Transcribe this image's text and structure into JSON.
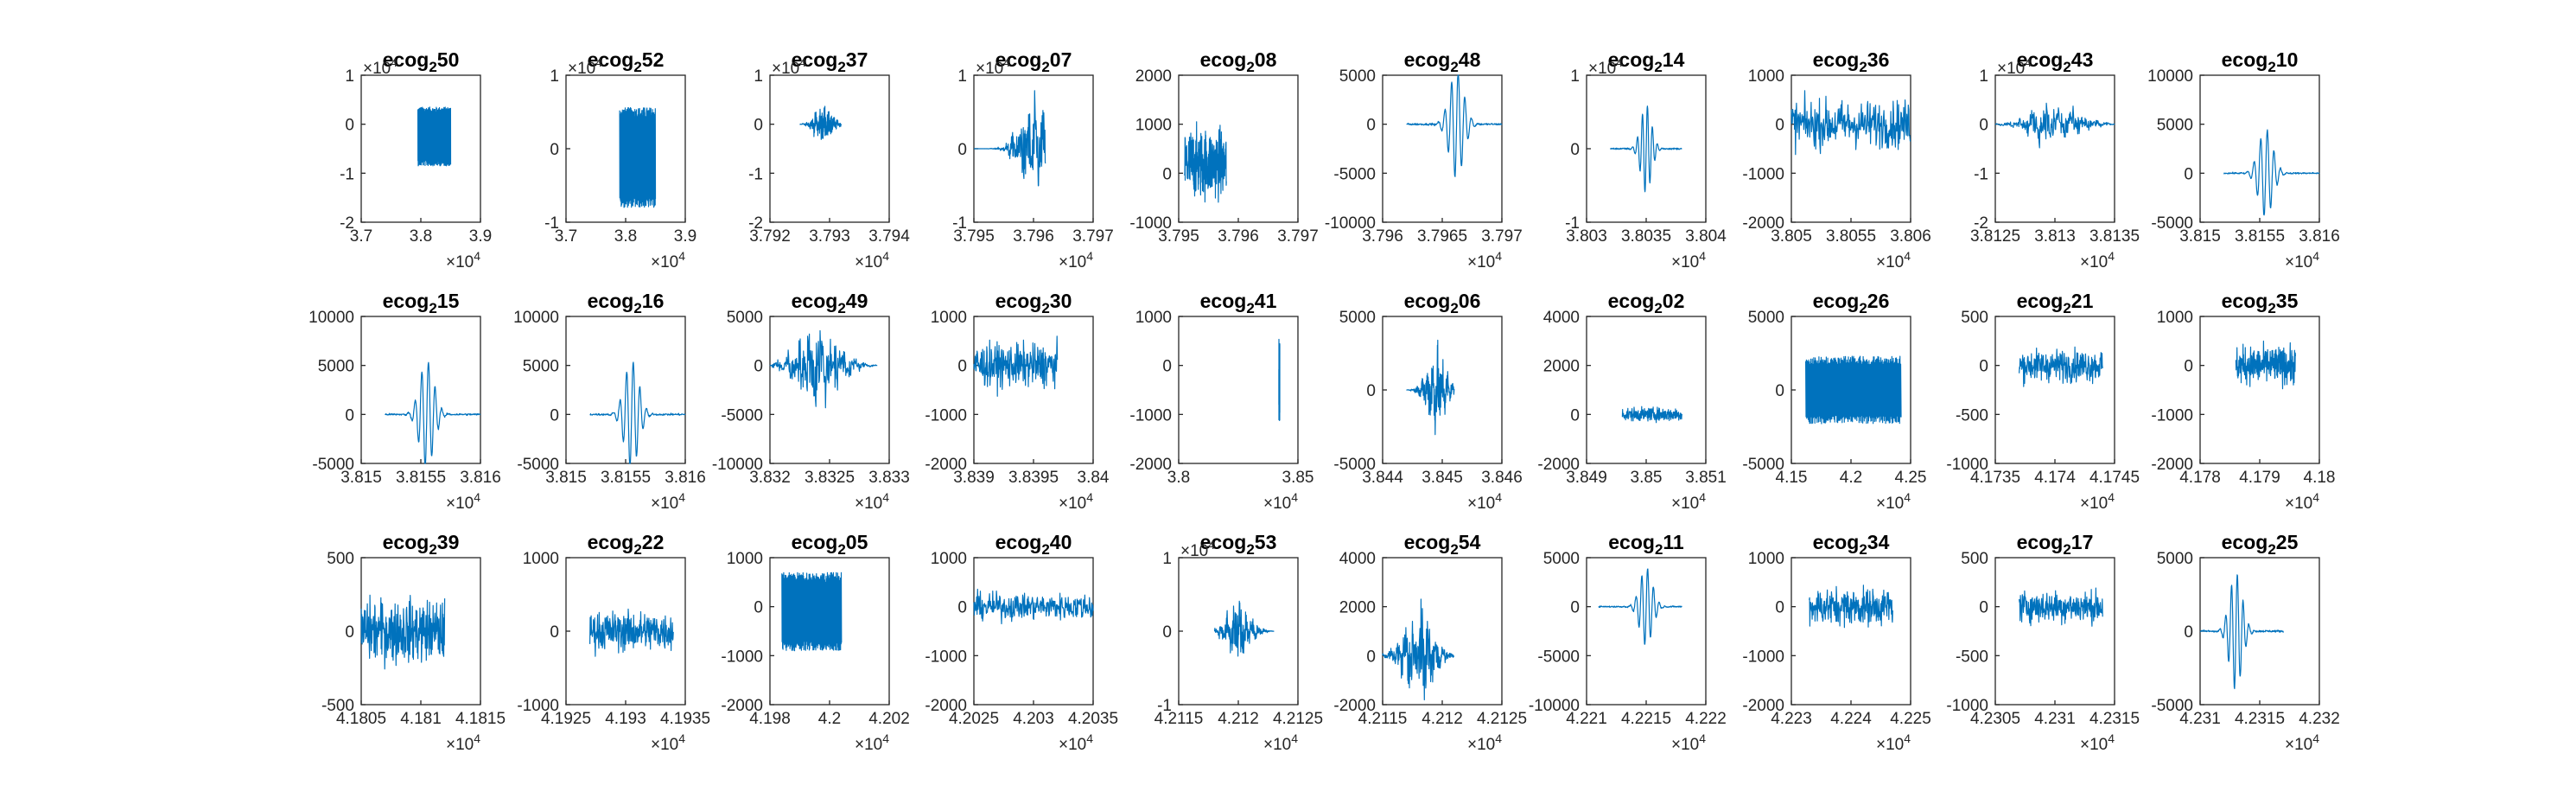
{
  "figure": {
    "background": "#ffffff",
    "line_color": "#0072BD",
    "axis_color": "#262626"
  },
  "chart_data": [
    {
      "type": "line",
      "title": "ecog",
      "title_sub": "2",
      "title_num": "50",
      "x_ticks": [
        "3.7",
        "3.8",
        "3.9"
      ],
      "xlim": [
        37000,
        39000
      ],
      "x_exponent": "4",
      "y_ticks": [
        "-2",
        "-1",
        "0",
        "1"
      ],
      "ylim": [
        -20000,
        10000
      ],
      "y_exponent": "4",
      "signal": {
        "start": 37950,
        "end": 38500,
        "center": 37950,
        "amp": 6000,
        "offset": -2500,
        "kind": "block"
      }
    },
    {
      "type": "line",
      "title": "ecog",
      "title_sub": "2",
      "title_num": "52",
      "x_ticks": [
        "3.7",
        "3.8",
        "3.9"
      ],
      "xlim": [
        37000,
        39000
      ],
      "x_exponent": "4",
      "y_ticks": [
        "-1",
        "0",
        "1"
      ],
      "ylim": [
        -10000,
        10000
      ],
      "y_exponent": "4",
      "signal": {
        "start": 37900,
        "end": 38500,
        "center": 37900,
        "amp": 6800,
        "offset": -1200,
        "kind": "block"
      }
    },
    {
      "type": "line",
      "title": "ecog",
      "title_sub": "2",
      "title_num": "37",
      "x_ticks": [
        "3.792",
        "3.793",
        "3.794"
      ],
      "xlim": [
        37920,
        37940
      ],
      "x_exponent": "4",
      "y_ticks": [
        "-2",
        "-1",
        "0",
        "1"
      ],
      "ylim": [
        -20000,
        10000
      ],
      "y_exponent": "4",
      "signal": {
        "start": 37925,
        "end": 37932,
        "center": 37929,
        "amp": 5000,
        "offset": 0,
        "kind": "burst"
      }
    },
    {
      "type": "line",
      "title": "ecog",
      "title_sub": "2",
      "title_num": "07",
      "x_ticks": [
        "3.795",
        "3.796",
        "3.797"
      ],
      "xlim": [
        37950,
        37970
      ],
      "x_exponent": "4",
      "y_ticks": [
        "-1",
        "0",
        "1"
      ],
      "ylim": [
        -10000,
        10000
      ],
      "y_exponent": "4",
      "signal": {
        "start": 37950,
        "end": 37962,
        "center": 37960,
        "amp": 8000,
        "offset": 0,
        "kind": "burst"
      }
    },
    {
      "type": "line",
      "title": "ecog",
      "title_sub": "2",
      "title_num": "08",
      "x_ticks": [
        "3.795",
        "3.796",
        "3.797"
      ],
      "xlim": [
        37950,
        37970
      ],
      "x_exponent": "",
      "y_ticks": [
        "-1000",
        "0",
        "1000",
        "2000"
      ],
      "ylim": [
        -1000,
        2000
      ],
      "signal": {
        "start": 37951,
        "end": 37958,
        "center": 37955,
        "amp": 1300,
        "offset": 200,
        "kind": "noise"
      }
    },
    {
      "type": "line",
      "title": "ecog",
      "title_sub": "2",
      "title_num": "48",
      "x_ticks": [
        "3.796",
        "3.7965",
        "3.797"
      ],
      "xlim": [
        37960,
        37970
      ],
      "x_exponent": "4",
      "y_ticks": [
        "-10000",
        "-5000",
        "0",
        "5000"
      ],
      "ylim": [
        -10000,
        5000
      ],
      "signal": {
        "start": 37962,
        "end": 37970,
        "center": 37966.2,
        "amp": 5500,
        "offset": 0,
        "kind": "wavelet"
      }
    },
    {
      "type": "line",
      "title": "ecog",
      "title_sub": "2",
      "title_num": "14",
      "x_ticks": [
        "3.803",
        "3.8035",
        "3.804"
      ],
      "xlim": [
        38030,
        38040
      ],
      "x_exponent": "4",
      "y_ticks": [
        "-1",
        "0",
        "1"
      ],
      "ylim": [
        -10000,
        10000
      ],
      "y_exponent": "4",
      "signal": {
        "start": 38032,
        "end": 38038,
        "center": 38035,
        "amp": 6000,
        "offset": 0,
        "kind": "wavelet"
      }
    },
    {
      "type": "line",
      "title": "ecog",
      "title_sub": "2",
      "title_num": "36",
      "x_ticks": [
        "3.805",
        "3.8055",
        "3.806"
      ],
      "xlim": [
        38050,
        38060
      ],
      "x_exponent": "4",
      "y_ticks": [
        "-2000",
        "-1000",
        "0",
        "1000"
      ],
      "ylim": [
        -2000,
        1000
      ],
      "signal": {
        "start": 38050,
        "end": 38060,
        "center": 38055,
        "amp": 900,
        "offset": 0,
        "kind": "noise"
      }
    },
    {
      "type": "line",
      "title": "ecog",
      "title_sub": "2",
      "title_num": "43",
      "x_ticks": [
        "3.8125",
        "3.813",
        "3.8135"
      ],
      "xlim": [
        38125,
        38135
      ],
      "x_exponent": "4",
      "y_ticks": [
        "-2",
        "-1",
        "0",
        "1"
      ],
      "ylim": [
        -20000,
        10000
      ],
      "y_exponent": "4",
      "signal": {
        "start": 38125,
        "end": 38135,
        "center": 38130,
        "amp": 6000,
        "offset": 0,
        "kind": "burst"
      }
    },
    {
      "type": "line",
      "title": "ecog",
      "title_sub": "2",
      "title_num": "10",
      "x_ticks": [
        "3.815",
        "3.8155",
        "3.816"
      ],
      "xlim": [
        38150,
        38160
      ],
      "x_exponent": "4",
      "y_ticks": [
        "-5000",
        "0",
        "5000",
        "10000"
      ],
      "ylim": [
        -5000,
        10000
      ],
      "signal": {
        "start": 38152,
        "end": 38160,
        "center": 38155.5,
        "amp": 4500,
        "offset": 0,
        "kind": "wavelet"
      }
    },
    {
      "type": "line",
      "title": "ecog",
      "title_sub": "2",
      "title_num": "15",
      "x_ticks": [
        "3.815",
        "3.8155",
        "3.816"
      ],
      "xlim": [
        38150,
        38160
      ],
      "x_exponent": "4",
      "y_ticks": [
        "-5000",
        "0",
        "5000",
        "10000"
      ],
      "ylim": [
        -5000,
        10000
      ],
      "signal": {
        "start": 38152,
        "end": 38160,
        "center": 38155.5,
        "amp": 5500,
        "offset": 0,
        "kind": "wavelet"
      }
    },
    {
      "type": "line",
      "title": "ecog",
      "title_sub": "2",
      "title_num": "16",
      "x_ticks": [
        "3.815",
        "3.8155",
        "3.816"
      ],
      "xlim": [
        38150,
        38160
      ],
      "x_exponent": "4",
      "y_ticks": [
        "-5000",
        "0",
        "5000",
        "10000"
      ],
      "ylim": [
        -5000,
        10000
      ],
      "signal": {
        "start": 38152,
        "end": 38160,
        "center": 38155.5,
        "amp": 5500,
        "offset": 0,
        "kind": "wavelet"
      }
    },
    {
      "type": "line",
      "title": "ecog",
      "title_sub": "2",
      "title_num": "49",
      "x_ticks": [
        "3.832",
        "3.8325",
        "3.833"
      ],
      "xlim": [
        38320,
        38330
      ],
      "x_exponent": "4",
      "y_ticks": [
        "-10000",
        "-5000",
        "0",
        "5000"
      ],
      "ylim": [
        -10000,
        5000
      ],
      "signal": {
        "start": 38320,
        "end": 38329,
        "center": 38324,
        "amp": 5500,
        "offset": 0,
        "kind": "burst"
      }
    },
    {
      "type": "line",
      "title": "ecog",
      "title_sub": "2",
      "title_num": "30",
      "x_ticks": [
        "3.839",
        "3.8395",
        "3.84"
      ],
      "xlim": [
        38390,
        38400
      ],
      "x_exponent": "4",
      "y_ticks": [
        "-2000",
        "-1000",
        "0",
        "1000"
      ],
      "ylim": [
        -2000,
        1000
      ],
      "signal": {
        "start": 38390,
        "end": 38397,
        "center": 38393,
        "amp": 800,
        "offset": 0,
        "kind": "noise"
      }
    },
    {
      "type": "line",
      "title": "ecog",
      "title_sub": "2",
      "title_num": "41",
      "x_ticks": [
        "3.8",
        "3.85"
      ],
      "xlim": [
        38000,
        38500
      ],
      "x_exponent": "4",
      "y_ticks": [
        "-2000",
        "-1000",
        "0",
        "1000"
      ],
      "ylim": [
        -2000,
        1000
      ],
      "signal": {
        "start": 38420,
        "end": 38424,
        "center": 38422,
        "amp": 900,
        "offset": -400,
        "kind": "spike"
      }
    },
    {
      "type": "line",
      "title": "ecog",
      "title_sub": "2",
      "title_num": "06",
      "x_ticks": [
        "3.844",
        "3.845",
        "3.846"
      ],
      "xlim": [
        38440,
        38460
      ],
      "x_exponent": "4",
      "y_ticks": [
        "-5000",
        "0",
        "5000"
      ],
      "ylim": [
        -5000,
        5000
      ],
      "signal": {
        "start": 38444,
        "end": 38452,
        "center": 38449,
        "amp": 3500,
        "offset": 0,
        "kind": "burst"
      }
    },
    {
      "type": "line",
      "title": "ecog",
      "title_sub": "2",
      "title_num": "02",
      "x_ticks": [
        "3.849",
        "3.85",
        "3.851"
      ],
      "xlim": [
        38490,
        38510
      ],
      "x_exponent": "4",
      "y_ticks": [
        "-2000",
        "0",
        "2000",
        "4000"
      ],
      "ylim": [
        -2000,
        4000
      ],
      "signal": {
        "start": 38496,
        "end": 38506,
        "center": 38500,
        "amp": 500,
        "offset": 0,
        "kind": "noise"
      }
    },
    {
      "type": "line",
      "title": "ecog",
      "title_sub": "2",
      "title_num": "26",
      "x_ticks": [
        "4.15",
        "4.2",
        "4.25"
      ],
      "xlim": [
        41500,
        42500
      ],
      "x_exponent": "4",
      "y_ticks": [
        "-5000",
        "0",
        "5000"
      ],
      "ylim": [
        -5000,
        5000
      ],
      "signal": {
        "start": 41620,
        "end": 42420,
        "center": 41620,
        "amp": 2300,
        "offset": 0,
        "kind": "block"
      }
    },
    {
      "type": "line",
      "title": "ecog",
      "title_sub": "2",
      "title_num": "21",
      "x_ticks": [
        "4.1735",
        "4.174",
        "4.1745"
      ],
      "xlim": [
        41735,
        41745
      ],
      "x_exponent": "4",
      "y_ticks": [
        "-1000",
        "-500",
        "0",
        "500"
      ],
      "ylim": [
        -1000,
        500
      ],
      "signal": {
        "start": 41737,
        "end": 41744,
        "center": 41740,
        "amp": 300,
        "offset": 0,
        "kind": "noise"
      }
    },
    {
      "type": "line",
      "title": "ecog",
      "title_sub": "2",
      "title_num": "35",
      "x_ticks": [
        "4.178",
        "4.179",
        "4.18"
      ],
      "xlim": [
        41780,
        41800
      ],
      "x_exponent": "4",
      "y_ticks": [
        "-2000",
        "-1000",
        "0",
        "1000"
      ],
      "ylim": [
        -2000,
        1000
      ],
      "signal": {
        "start": 41786,
        "end": 41796,
        "center": 41790,
        "amp": 700,
        "offset": 0,
        "kind": "noise"
      }
    },
    {
      "type": "line",
      "title": "ecog",
      "title_sub": "2",
      "title_num": "39",
      "x_ticks": [
        "4.1805",
        "4.181",
        "4.1815"
      ],
      "xlim": [
        41805,
        41815
      ],
      "x_exponent": "4",
      "y_ticks": [
        "-500",
        "0",
        "500"
      ],
      "ylim": [
        -500,
        500
      ],
      "signal": {
        "start": 41805,
        "end": 41812,
        "center": 41808,
        "amp": 400,
        "offset": 0,
        "kind": "noise"
      }
    },
    {
      "type": "line",
      "title": "ecog",
      "title_sub": "2",
      "title_num": "22",
      "x_ticks": [
        "4.1925",
        "4.193",
        "4.1935"
      ],
      "xlim": [
        41925,
        41935
      ],
      "x_exponent": "4",
      "y_ticks": [
        "-1000",
        "0",
        "1000"
      ],
      "ylim": [
        -1000,
        1000
      ],
      "signal": {
        "start": 41927,
        "end": 41934,
        "center": 41930,
        "amp": 500,
        "offset": 0,
        "kind": "noise"
      }
    },
    {
      "type": "line",
      "title": "ecog",
      "title_sub": "2",
      "title_num": "05",
      "x_ticks": [
        "4.198",
        "4.2",
        "4.202"
      ],
      "xlim": [
        41980,
        42020
      ],
      "x_exponent": "4",
      "y_ticks": [
        "-2000",
        "-1000",
        "0",
        "1000"
      ],
      "ylim": [
        -2000,
        1000
      ],
      "signal": {
        "start": 41984,
        "end": 42004,
        "center": 41984,
        "amp": 800,
        "offset": -100,
        "kind": "block"
      }
    },
    {
      "type": "line",
      "title": "ecog",
      "title_sub": "2",
      "title_num": "40",
      "x_ticks": [
        "4.2025",
        "4.203",
        "4.2035"
      ],
      "xlim": [
        42025,
        42035
      ],
      "x_exponent": "4",
      "y_ticks": [
        "-2000",
        "-1000",
        "0",
        "1000"
      ],
      "ylim": [
        -2000,
        1000
      ],
      "signal": {
        "start": 42025,
        "end": 42035,
        "center": 42030,
        "amp": 500,
        "offset": 0,
        "kind": "noise"
      }
    },
    {
      "type": "line",
      "title": "ecog",
      "title_sub": "2",
      "title_num": "53",
      "x_ticks": [
        "4.2115",
        "4.212",
        "4.2125"
      ],
      "xlim": [
        42115,
        42125
      ],
      "x_exponent": "4",
      "y_ticks": [
        "-1",
        "0",
        "1"
      ],
      "ylim": [
        -10000,
        10000
      ],
      "y_exponent": "4",
      "signal": {
        "start": 42118,
        "end": 42123,
        "center": 42120,
        "amp": 5000,
        "offset": 0,
        "kind": "burst"
      }
    },
    {
      "type": "line",
      "title": "ecog",
      "title_sub": "2",
      "title_num": "54",
      "x_ticks": [
        "4.2115",
        "4.212",
        "4.2125"
      ],
      "xlim": [
        42115,
        42125
      ],
      "x_exponent": "4",
      "y_ticks": [
        "-2000",
        "0",
        "2000",
        "4000"
      ],
      "ylim": [
        -2000,
        4000
      ],
      "signal": {
        "start": 42115,
        "end": 42121,
        "center": 42118,
        "amp": 2500,
        "offset": 0,
        "kind": "burst"
      }
    },
    {
      "type": "line",
      "title": "ecog",
      "title_sub": "2",
      "title_num": "11",
      "x_ticks": [
        "4.221",
        "4.2215",
        "4.222"
      ],
      "xlim": [
        42210,
        42220
      ],
      "x_exponent": "4",
      "y_ticks": [
        "-10000",
        "-5000",
        "0",
        "5000"
      ],
      "ylim": [
        -10000,
        5000
      ],
      "signal": {
        "start": 42211,
        "end": 42218,
        "center": 42215,
        "amp": 4000,
        "offset": 0,
        "kind": "wavelet"
      }
    },
    {
      "type": "line",
      "title": "ecog",
      "title_sub": "2",
      "title_num": "34",
      "x_ticks": [
        "4.223",
        "4.224",
        "4.225"
      ],
      "xlim": [
        42230,
        42250
      ],
      "x_exponent": "4",
      "y_ticks": [
        "-2000",
        "-1000",
        "0",
        "1000"
      ],
      "ylim": [
        -2000,
        1000
      ],
      "signal": {
        "start": 42233,
        "end": 42247,
        "center": 42240,
        "amp": 700,
        "offset": 0,
        "kind": "noise"
      }
    },
    {
      "type": "line",
      "title": "ecog",
      "title_sub": "2",
      "title_num": "17",
      "x_ticks": [
        "4.2305",
        "4.231",
        "4.2315"
      ],
      "xlim": [
        42305,
        42315
      ],
      "x_exponent": "4",
      "y_ticks": [
        "-1000",
        "-500",
        "0",
        "500"
      ],
      "ylim": [
        -1000,
        500
      ],
      "signal": {
        "start": 42307,
        "end": 42314,
        "center": 42310,
        "amp": 300,
        "offset": 0,
        "kind": "noise"
      }
    },
    {
      "type": "line",
      "title": "ecog",
      "title_sub": "2",
      "title_num": "25",
      "x_ticks": [
        "4.231",
        "4.2315",
        "4.232"
      ],
      "xlim": [
        42310,
        42320
      ],
      "x_exponent": "4",
      "y_ticks": [
        "-5000",
        "0",
        "5000"
      ],
      "ylim": [
        -5000,
        5000
      ],
      "signal": {
        "start": 42310,
        "end": 42317,
        "center": 42313,
        "amp": 4000,
        "offset": 0,
        "kind": "wavelet"
      }
    }
  ]
}
